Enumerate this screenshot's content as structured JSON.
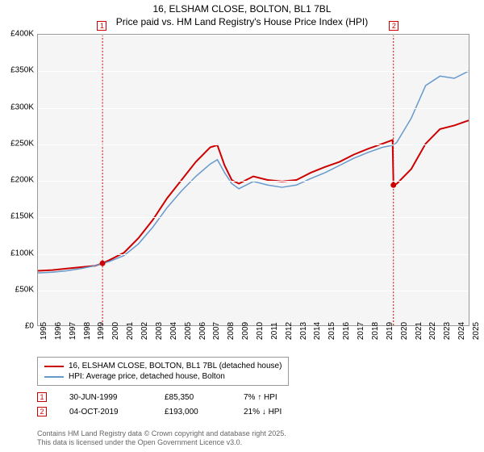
{
  "title": "16, ELSHAM CLOSE, BOLTON, BL1 7BL",
  "subtitle": "Price paid vs. HM Land Registry's House Price Index (HPI)",
  "chart": {
    "type": "line",
    "background_color": "#f5f5f5",
    "grid_color": "#ffffff",
    "border_color": "#999999",
    "ylim": [
      0,
      400000
    ],
    "ytick_step": 50000,
    "yticks": [
      "£0",
      "£50K",
      "£100K",
      "£150K",
      "£200K",
      "£250K",
      "£300K",
      "£350K",
      "£400K"
    ],
    "xlim": [
      1995,
      2025
    ],
    "xticks": [
      "1995",
      "1996",
      "1997",
      "1998",
      "1999",
      "2000",
      "2001",
      "2002",
      "2003",
      "2004",
      "2005",
      "2006",
      "2007",
      "2008",
      "2009",
      "2010",
      "2011",
      "2012",
      "2013",
      "2014",
      "2015",
      "2016",
      "2017",
      "2018",
      "2019",
      "2020",
      "2021",
      "2022",
      "2023",
      "2024",
      "2025"
    ],
    "title_fontsize": 12,
    "label_fontsize": 10,
    "series": [
      {
        "name": "price_paid",
        "color": "#cc0000",
        "line_width": 2,
        "data": [
          [
            1995,
            75000
          ],
          [
            1996,
            76000
          ],
          [
            1997,
            78000
          ],
          [
            1998,
            80000
          ],
          [
            1999,
            82000
          ],
          [
            1999.5,
            85350
          ],
          [
            2000,
            90000
          ],
          [
            2001,
            100000
          ],
          [
            2002,
            120000
          ],
          [
            2003,
            145000
          ],
          [
            2004,
            175000
          ],
          [
            2005,
            200000
          ],
          [
            2006,
            225000
          ],
          [
            2007,
            245000
          ],
          [
            2007.5,
            248000
          ],
          [
            2008,
            220000
          ],
          [
            2008.5,
            200000
          ],
          [
            2009,
            195000
          ],
          [
            2010,
            205000
          ],
          [
            2011,
            200000
          ],
          [
            2012,
            198000
          ],
          [
            2013,
            200000
          ],
          [
            2014,
            210000
          ],
          [
            2015,
            218000
          ],
          [
            2016,
            225000
          ],
          [
            2017,
            235000
          ],
          [
            2018,
            243000
          ],
          [
            2019,
            250000
          ],
          [
            2019.7,
            255000
          ],
          [
            2019.76,
            193000
          ],
          [
            2020,
            195000
          ],
          [
            2021,
            215000
          ],
          [
            2022,
            250000
          ],
          [
            2023,
            270000
          ],
          [
            2024,
            275000
          ],
          [
            2025,
            282000
          ]
        ]
      },
      {
        "name": "hpi",
        "color": "#6699cc",
        "line_width": 1.5,
        "data": [
          [
            1995,
            72000
          ],
          [
            1996,
            73000
          ],
          [
            1997,
            75000
          ],
          [
            1998,
            78000
          ],
          [
            1999,
            82000
          ],
          [
            2000,
            88000
          ],
          [
            2001,
            96000
          ],
          [
            2002,
            112000
          ],
          [
            2003,
            135000
          ],
          [
            2004,
            162000
          ],
          [
            2005,
            185000
          ],
          [
            2006,
            205000
          ],
          [
            2007,
            222000
          ],
          [
            2007.5,
            228000
          ],
          [
            2008,
            210000
          ],
          [
            2008.5,
            195000
          ],
          [
            2009,
            188000
          ],
          [
            2010,
            198000
          ],
          [
            2011,
            193000
          ],
          [
            2012,
            190000
          ],
          [
            2013,
            193000
          ],
          [
            2014,
            202000
          ],
          [
            2015,
            210000
          ],
          [
            2016,
            220000
          ],
          [
            2017,
            230000
          ],
          [
            2018,
            238000
          ],
          [
            2019,
            245000
          ],
          [
            2019.76,
            248000
          ],
          [
            2020,
            252000
          ],
          [
            2021,
            285000
          ],
          [
            2022,
            330000
          ],
          [
            2023,
            343000
          ],
          [
            2024,
            340000
          ],
          [
            2025,
            350000
          ]
        ]
      }
    ],
    "markers": [
      {
        "id": "1",
        "x": 1999.5,
        "y": 85350,
        "color": "#cc0000",
        "line_color": "#cc0000"
      },
      {
        "id": "2",
        "x": 2019.76,
        "y": 193000,
        "color": "#cc0000",
        "line_color": "#cc0000"
      }
    ]
  },
  "legend": {
    "items": [
      {
        "color": "#cc0000",
        "label": "16, ELSHAM CLOSE, BOLTON, BL1 7BL (detached house)"
      },
      {
        "color": "#6699cc",
        "label": "HPI: Average price, detached house, Bolton"
      }
    ]
  },
  "sales": [
    {
      "marker": "1",
      "marker_color": "#cc0000",
      "date": "30-JUN-1999",
      "price": "£85,350",
      "delta": "7% ↑ HPI"
    },
    {
      "marker": "2",
      "marker_color": "#cc0000",
      "date": "04-OCT-2019",
      "price": "£193,000",
      "delta": "21% ↓ HPI"
    }
  ],
  "footer": {
    "line1": "Contains HM Land Registry data © Crown copyright and database right 2025.",
    "line2": "This data is licensed under the Open Government Licence v3.0."
  }
}
